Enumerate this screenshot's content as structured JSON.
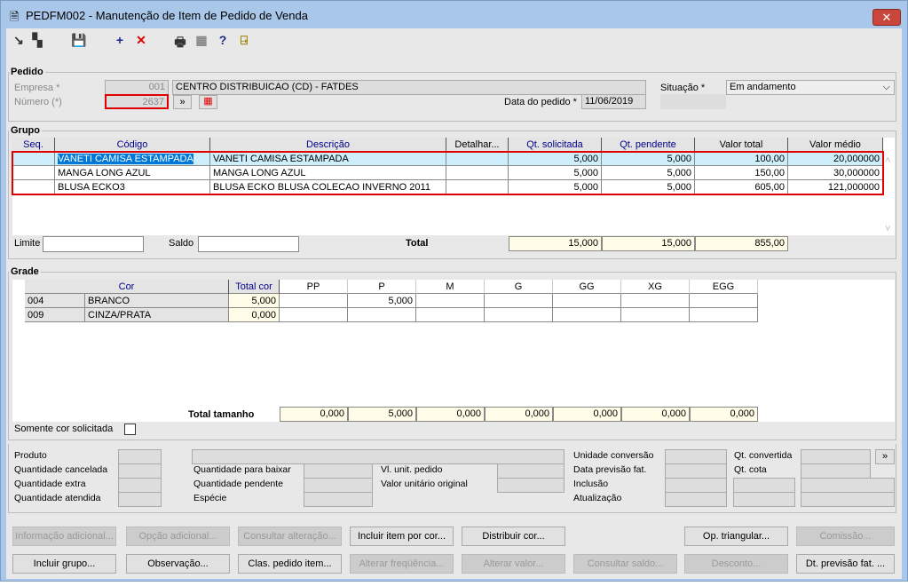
{
  "window": {
    "title": "PEDFM002 - Manutenção de Item de Pedido de Venda",
    "close": "✕"
  },
  "toolbar": [
    {
      "icon": "export-icon",
      "glyph": "↘"
    },
    {
      "icon": "copy-icon",
      "glyph": "▚"
    },
    {
      "icon": "save-icon",
      "glyph": "💾"
    },
    {
      "icon": "add-icon",
      "glyph": "+"
    },
    {
      "icon": "delete-icon",
      "glyph": "✕"
    },
    {
      "icon": "print-icon",
      "glyph": "🖶"
    },
    {
      "icon": "grid-icon",
      "glyph": "▦"
    },
    {
      "icon": "help-icon",
      "glyph": "?"
    },
    {
      "icon": "exit-icon",
      "glyph": "⍈"
    }
  ],
  "pedido": {
    "legend": "Pedido",
    "empresa_label": "Empresa *",
    "empresa_code": "001",
    "empresa_name": "CENTRO DISTRIBUICAO (CD) - FATDES",
    "numero_label": "Número (*)",
    "numero": "2637",
    "next": "»",
    "situacao_label": "Situação *",
    "situacao": "Em andamento",
    "data_label": "Data do pedido *",
    "data": "11/06/2019"
  },
  "grupo": {
    "legend": "Grupo",
    "columns": [
      "Seq.",
      "Código",
      "Descrição",
      "Detalhar...",
      "Qt. solicitada",
      "Qt. pendente",
      "Valor total",
      "Valor médio"
    ],
    "rows": [
      [
        "",
        "VANETI CAMISA ESTAMPADA",
        "VANETI CAMISA ESTAMPADA",
        "",
        "5,000",
        "5,000",
        "100,00",
        "20,000000"
      ],
      [
        "",
        "MANGA LONG AZUL",
        "MANGA LONG AZUL",
        "",
        "5,000",
        "5,000",
        "150,00",
        "30,000000"
      ],
      [
        "",
        "BLUSA ECKO3",
        "BLUSA ECKO BLUSA COLECAO INVERNO 2011",
        "",
        "5,000",
        "5,000",
        "605,00",
        "121,000000"
      ]
    ],
    "limite_label": "Limite",
    "saldo_label": "Saldo",
    "total_label": "Total",
    "totals": [
      "15,000",
      "15,000",
      "855,00"
    ]
  },
  "grade": {
    "legend": "Grade",
    "columns": [
      "Cor",
      "Total cor",
      "PP",
      "P",
      "M",
      "G",
      "GG",
      "XG",
      "EGG"
    ],
    "rows": [
      [
        "004",
        "BRANCO",
        "5,000",
        "",
        "5,000",
        "",
        "",
        "",
        "",
        ""
      ],
      [
        "009",
        "CINZA/PRATA",
        "0,000",
        "",
        "",
        "",
        "",
        "",
        "",
        ""
      ]
    ],
    "total_label": "Total tamanho",
    "totals": [
      "0,000",
      "5,000",
      "0,000",
      "0,000",
      "0,000",
      "0,000",
      "0,000"
    ],
    "somente_label": "Somente cor solicitada",
    "somente_checked": false
  },
  "details": {
    "produto": "Produto",
    "qt_cancelada": "Quantidade cancelada",
    "qt_extra": "Quantidade extra",
    "qt_atendida": "Quantidade atendida",
    "qt_baixar": "Quantidade para baixar",
    "qt_pendente": "Quantidade pendente",
    "especie": "Espécie",
    "vl_unit": "Vl. unit. pedido",
    "vl_orig": "Valor unitário original",
    "un_conv": "Unidade conversão",
    "dt_prev": "Data previsão fat.",
    "inclusao": "Inclusão",
    "atualizacao": "Atualização",
    "qt_convertida": "Qt. convertida",
    "qt_cota": "Qt. cota",
    "more": "»"
  },
  "buttons_row1": [
    {
      "label": "Informação adicional...",
      "enabled": false
    },
    {
      "label": "Opção adicional...",
      "enabled": false
    },
    {
      "label": "Consultar alteração...",
      "enabled": false
    },
    {
      "label": "Incluir item por cor...",
      "enabled": true
    },
    {
      "label": "Distribuir cor...",
      "enabled": true
    },
    {
      "label": "Op. triangular...",
      "enabled": true
    },
    {
      "label": "Comissão...",
      "enabled": false
    }
  ],
  "buttons_row2": [
    {
      "label": "Incluir grupo...",
      "enabled": true
    },
    {
      "label": "Observação...",
      "enabled": true
    },
    {
      "label": "Clas. pedido item...",
      "enabled": true
    },
    {
      "label": "Alterar freqüência...",
      "enabled": false
    },
    {
      "label": "Alterar valor...",
      "enabled": false
    },
    {
      "label": "Consultar saldo...",
      "enabled": false
    },
    {
      "label": "Desconto...",
      "enabled": false
    },
    {
      "label": "Dt. previsão fat. ...",
      "enabled": true
    }
  ],
  "colors": {
    "highlight": "#cdeefa",
    "selection": "#0078d7",
    "red_outline": "#e00000",
    "header_link": "#00008b"
  }
}
